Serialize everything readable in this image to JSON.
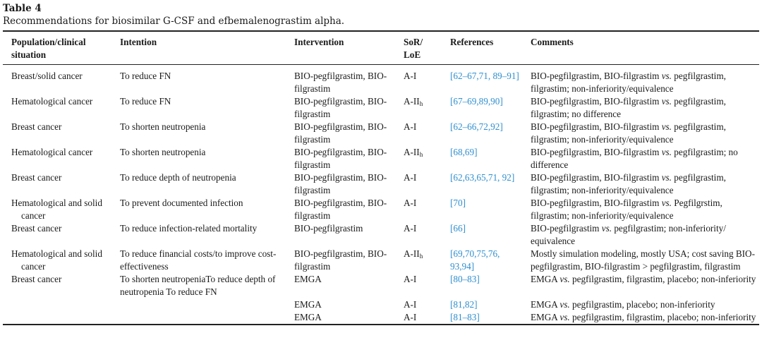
{
  "caption": {
    "label": "Table 4",
    "title": "Recommendations for biosimilar G-CSF and efbemalenograstim alpha."
  },
  "headers": {
    "population": "Population/clinical situation",
    "intention": "Intention",
    "intervention": "Intervention",
    "sor_main": "SoR/",
    "sor_loe": "LoE",
    "references": "References",
    "comments": "Comments"
  },
  "rows": [
    {
      "population": "Breast/solid cancer",
      "intention": "To reduce FN",
      "intervention": "BIO-pegfilgrastim, BIO-filgrastim",
      "sor": "A-I",
      "sor_sub": "",
      "references": "[62–67,71, 89–91]",
      "comments": "BIO-pegfilgrastim, BIO-filgrastim vs. pegfilgrastim, filgrastim; non-inferiority/equivalence"
    },
    {
      "population": "Hematological cancer",
      "intention": "To reduce FN",
      "intervention": "BIO-pegfilgrastim, BIO-filgrastim",
      "sor": "A-II",
      "sor_sub": "h",
      "references": "[67–69,89,90]",
      "comments": "BIO-pegfilgrastim, BIO-filgrastim vs. pegfilgrastim, filgrastim; no difference"
    },
    {
      "population": "Breast cancer",
      "intention": "To shorten neutropenia",
      "intervention": "BIO-pegfilgrastim, BIO-filgrastim",
      "sor": "A-I",
      "sor_sub": "",
      "references": "[62–66,72,92]",
      "comments": "BIO-pegfilgrastim, BIO-filgrastim vs. pegfilgrastim, filgrastim; non-inferiority/equivalence"
    },
    {
      "population": "Hematological cancer",
      "intention": "To shorten neutropenia",
      "intervention": "BIO-pegfilgrastim, BIO-filgrastim",
      "sor": "A-II",
      "sor_sub": "h",
      "references": "[68,69]",
      "comments": "BIO-pegfilgrastim, BIO-filgrastim vs. pegfilgrastim; no difference"
    },
    {
      "population": "Breast cancer",
      "intention": "To reduce depth of neutropenia",
      "intervention": "BIO-pegfilgrastim, BIO-filgrastim",
      "sor": "A-I",
      "sor_sub": "",
      "references": "[62,63,65,71, 92]",
      "comments": "BIO-pegfilgrastim, BIO-filgrastim vs. pegfilgrastim, filgrastim; non-inferiority/equivalence"
    },
    {
      "population": "Hematological and solid cancer",
      "intention": "To prevent documented infection",
      "intervention": "BIO-pegfilgrastim, BIO-filgrastim",
      "sor": "A-I",
      "sor_sub": "",
      "references": "[70]",
      "comments": "BIO-pegfilgrastim, BIO-filgrastim vs. Pegfilgrstim, filgrastim; non-inferiority/equivalence"
    },
    {
      "population": "Breast cancer",
      "intention": "To reduce infection-related mortality",
      "intervention": "BIO-pegfilgrastim",
      "sor": "A-I",
      "sor_sub": "",
      "references": "[66]",
      "comments": "BIO-pegfilgrastim vs. pegfilgrastim; non-inferiority/ equivalence"
    },
    {
      "population": "Hematological and solid cancer",
      "intention": "To reduce financial costs/to improve cost-effectiveness",
      "intervention": "BIO-pegfilgrastim, BIO-filgrastim",
      "sor": "A-II",
      "sor_sub": "h",
      "references": "[69,70,75,76, 93,94]",
      "comments": "Mostly simulation modeling, mostly USA; cost saving BIO-pegfilgrastim, BIO-filgrastim > pegfilgrastim, filgrastim"
    },
    {
      "population": "Breast cancer",
      "intention": "To shorten neutropeniaTo reduce depth of neutropenia To reduce FN",
      "intervention": "EMGA",
      "sor": "A-I",
      "sor_sub": "",
      "references": "[80–83]",
      "comments": "EMGA vs. pegfilgrastim, filgrastim, placebo; non-inferiority"
    },
    {
      "population": "",
      "intention": "",
      "intervention": "EMGA",
      "sor": "A-I",
      "sor_sub": "",
      "references": "[81,82]",
      "comments": "EMGA vs. pegfilgrastim, placebo; non-inferiority"
    },
    {
      "population": "",
      "intention": "",
      "intervention": "EMGA",
      "sor": "A-I",
      "sor_sub": "",
      "references": "[81–83]",
      "comments": "EMGA vs. pegfilgrastim, filgrastim, placebo; non-inferiority"
    }
  ]
}
